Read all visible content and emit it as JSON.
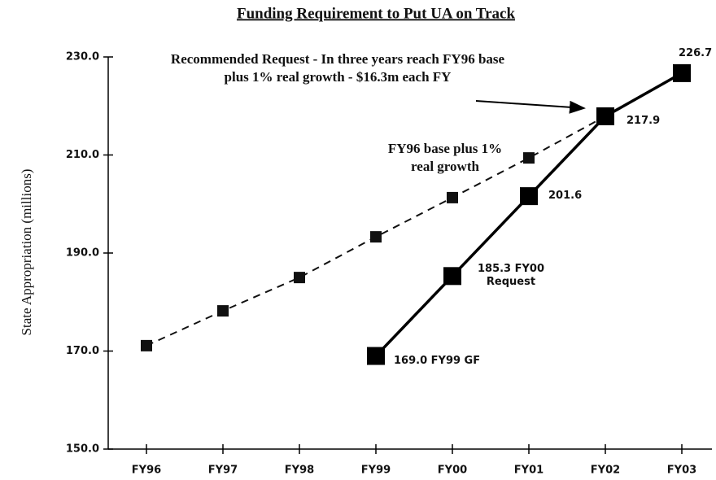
{
  "chart_data": {
    "type": "line",
    "title": "Funding Requirement to Put UA on Track",
    "y_label": "State Appropriation (millions)",
    "categories": [
      "FY96",
      "FY97",
      "FY98",
      "FY99",
      "FY00",
      "FY01",
      "FY02",
      "FY03"
    ],
    "series": [
      {
        "name": "FY96 base plus 1% real growth",
        "color": "#111111",
        "dashed": true,
        "values": [
          171.1,
          178.2,
          185.0,
          193.3,
          201.3,
          209.4,
          217.9,
          null
        ]
      },
      {
        "color": "#000000",
        "dashed": false,
        "values": [
          null,
          null,
          null,
          169.0,
          185.3,
          201.6,
          217.9,
          226.7
        ],
        "value_labels": [
          null,
          null,
          null,
          "169.0 FY99 GF",
          "185.3 FY00 Request",
          "201.6",
          "217.9",
          "226.7"
        ]
      }
    ],
    "annotations": [
      "Recommended Request - In three years reach FY96 base plus 1% real growth - $16.3m each FY"
    ],
    "ylim": [
      150,
      230
    ],
    "yticks": [
      {
        "value": 150,
        "label": "150.0"
      },
      {
        "value": 170,
        "label": "170.0"
      },
      {
        "value": 190,
        "label": "190.0"
      },
      {
        "value": 210,
        "label": "210.0"
      },
      {
        "value": 230,
        "label": "230.0"
      }
    ],
    "grid": false
  }
}
